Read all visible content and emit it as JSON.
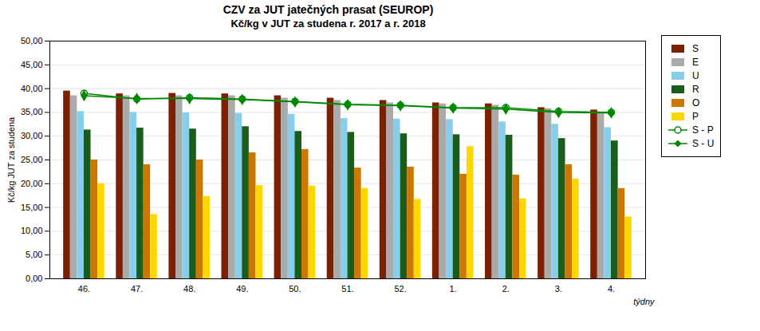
{
  "chart_data": {
    "type": "bar",
    "title": "CZV za JUT jatečných prasat (SEUROP)",
    "subtitle": "Kč/kg v JUT za studena r. 2017 a r. 2018",
    "xlabel": "týdny",
    "ylabel": "Kč/kg JUT za studena",
    "categories": [
      "46.",
      "47.",
      "48.",
      "49.",
      "50.",
      "51.",
      "52.",
      "1.",
      "2.",
      "3.",
      "4."
    ],
    "series": [
      {
        "name": "S",
        "color": "#7B2000",
        "values": [
          39.5,
          38.9,
          39.0,
          38.9,
          38.5,
          38.0,
          37.5,
          37.0,
          36.8,
          36.0,
          35.5
        ]
      },
      {
        "name": "E",
        "color": "#AAAAAA",
        "values": [
          38.5,
          38.5,
          38.5,
          38.5,
          38.0,
          37.5,
          37.0,
          36.8,
          36.5,
          35.8,
          35.0
        ]
      },
      {
        "name": "U",
        "color": "#87CEEB",
        "values": [
          35.2,
          35.0,
          34.9,
          34.8,
          34.6,
          33.7,
          33.6,
          33.5,
          33.0,
          32.5,
          31.8
        ]
      },
      {
        "name": "R",
        "color": "#1A5C1A",
        "values": [
          31.3,
          31.7,
          31.5,
          32.0,
          31.0,
          30.8,
          30.5,
          30.3,
          30.2,
          29.5,
          29.0
        ]
      },
      {
        "name": "O",
        "color": "#CC7700",
        "values": [
          25.0,
          24.0,
          25.0,
          26.5,
          27.2,
          23.3,
          23.5,
          22.0,
          21.8,
          24.0,
          19.0
        ]
      },
      {
        "name": "P",
        "color": "#FFD700",
        "values": [
          20.0,
          13.5,
          17.3,
          19.6,
          19.5,
          19.0,
          16.7,
          27.8,
          16.8,
          21.0,
          13.0
        ]
      },
      {
        "name": "S - P",
        "type": "line",
        "color": "#008800",
        "marker": "circle",
        "values": [
          39.0,
          37.8,
          38.1,
          37.8,
          37.3,
          36.7,
          36.5,
          36.0,
          36.0,
          35.2,
          35.0
        ]
      },
      {
        "name": "S - U",
        "type": "line",
        "color": "#008800",
        "marker": "diamond",
        "values": [
          38.5,
          37.9,
          37.9,
          37.7,
          37.2,
          36.6,
          36.4,
          35.9,
          35.7,
          35.0,
          34.9
        ]
      }
    ],
    "ylim": [
      0,
      50
    ],
    "yticks": [
      {
        "value": 0,
        "label": "0,00"
      },
      {
        "value": 5,
        "label": "5,00"
      },
      {
        "value": 10,
        "label": "10,00"
      },
      {
        "value": 15,
        "label": "15,00"
      },
      {
        "value": 20,
        "label": "20,00"
      },
      {
        "value": 25,
        "label": "25,00"
      },
      {
        "value": 30,
        "label": "30,00"
      },
      {
        "value": 35,
        "label": "35,00"
      },
      {
        "value": 40,
        "label": "40,00"
      },
      {
        "value": 45,
        "label": "45,00"
      },
      {
        "value": 50,
        "label": "50,00"
      }
    ],
    "grid": true,
    "legend": "right"
  }
}
